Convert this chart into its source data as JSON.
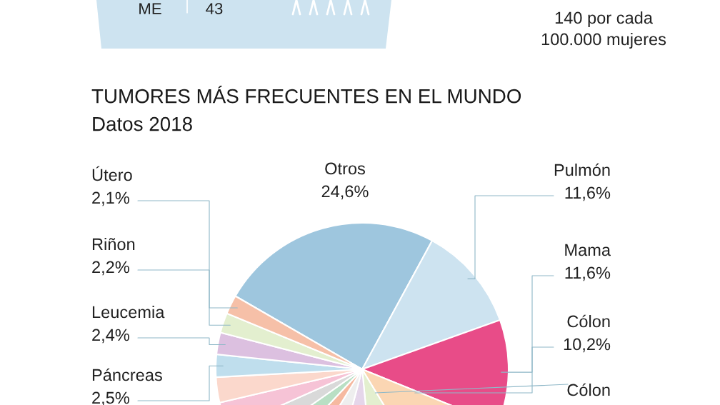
{
  "chart_data": {
    "type": "pie",
    "title": "TUMORES MÁS FRECUENTES EN EL MUNDO",
    "subtitle": "Datos 2018",
    "categories": [
      "Otros",
      "Pulmón",
      "Mama",
      "Cólon",
      "Cólon",
      null,
      null,
      null,
      null,
      null,
      null,
      null,
      "Páncreas",
      "Leucemia",
      "Riñon",
      "Útero"
    ],
    "values": [
      24.6,
      11.6,
      11.6,
      10.2,
      7.1,
      5.7,
      4.7,
      3.2,
      3.2,
      3.1,
      3.0,
      2.8,
      2.5,
      2.4,
      2.2,
      2.1
    ],
    "value_labels": [
      "24,6%",
      "11,6%",
      "11,6%",
      "10,2%",
      null,
      null,
      null,
      null,
      null,
      null,
      null,
      null,
      "2,5%",
      "2,4%",
      "2,2%",
      "2,1%"
    ],
    "colors": [
      "#9ec6de",
      "#cde3f0",
      "#e84c88",
      "#fbd6b3",
      "#e3efcf",
      "#e5d6ea",
      "#eeeeee",
      "#f6b9a0",
      "#b9dfc4",
      "#d9d9d9",
      "#f6c3d6",
      "#fbd8cc",
      "#bfdeed",
      "#dcc0e0",
      "#e3efcf",
      "#f6c0a8"
    ],
    "annotations": [
      "ME",
      "43",
      "140 por cada",
      "100.000 mujeres"
    ]
  }
}
